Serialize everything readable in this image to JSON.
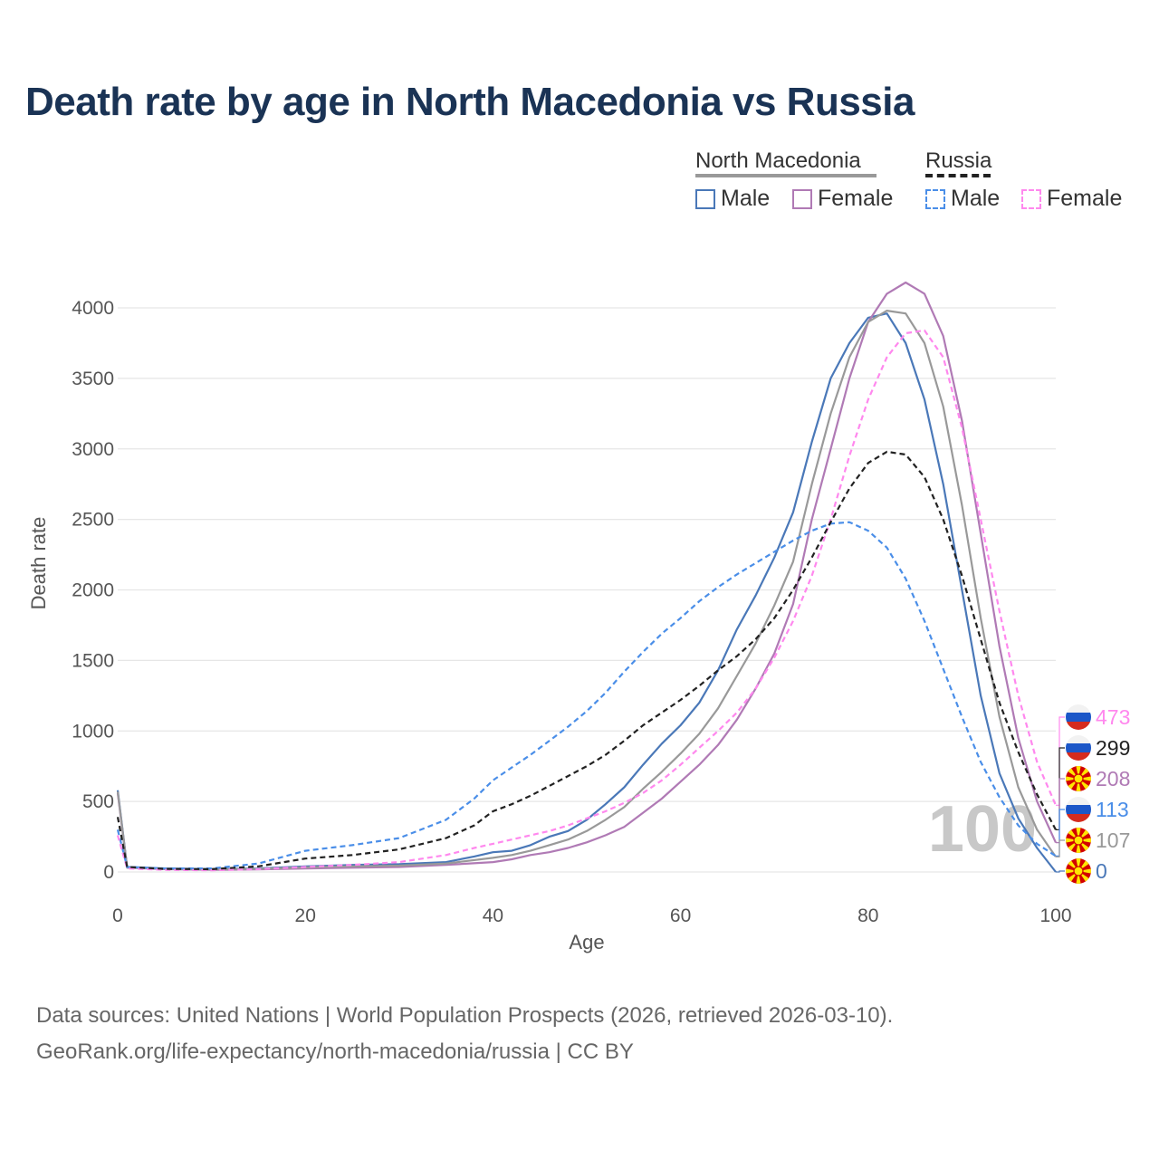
{
  "title": "Death rate by age in North Macedonia vs Russia",
  "legend": {
    "groups": [
      {
        "name": "North Macedonia",
        "underline_color": "#999999"
      },
      {
        "name": "Russia",
        "underline_color": "#222222"
      }
    ],
    "items": [
      {
        "label": "Male",
        "color": "#4a78b8",
        "style": "solid"
      },
      {
        "label": "Female",
        "color": "#b07ab5",
        "style": "solid"
      },
      {
        "label": "Male",
        "color": "#4a8ee8",
        "style": "dashed"
      },
      {
        "label": "Female",
        "color": "#ff88ee",
        "style": "dashed"
      }
    ]
  },
  "chart_data": {
    "type": "line",
    "xlabel": "Age",
    "ylabel": "Death rate",
    "xlim": [
      0,
      100
    ],
    "ylim": [
      0,
      4200
    ],
    "xticks": [
      0,
      20,
      40,
      60,
      80,
      100
    ],
    "yticks": [
      0,
      500,
      1000,
      1500,
      2000,
      2500,
      3000,
      3500,
      4000
    ],
    "watermark": "100",
    "series": [
      {
        "name": "North Macedonia Male",
        "color": "#4a78b8",
        "dashed": false,
        "points": [
          [
            0,
            580
          ],
          [
            1,
            35
          ],
          [
            5,
            25
          ],
          [
            10,
            20
          ],
          [
            15,
            25
          ],
          [
            20,
            40
          ],
          [
            25,
            50
          ],
          [
            30,
            55
          ],
          [
            35,
            70
          ],
          [
            38,
            110
          ],
          [
            40,
            140
          ],
          [
            42,
            150
          ],
          [
            44,
            190
          ],
          [
            46,
            250
          ],
          [
            48,
            290
          ],
          [
            50,
            370
          ],
          [
            52,
            480
          ],
          [
            54,
            600
          ],
          [
            56,
            760
          ],
          [
            58,
            910
          ],
          [
            60,
            1040
          ],
          [
            62,
            1200
          ],
          [
            64,
            1430
          ],
          [
            66,
            1720
          ],
          [
            68,
            1960
          ],
          [
            70,
            2230
          ],
          [
            72,
            2550
          ],
          [
            74,
            3050
          ],
          [
            76,
            3500
          ],
          [
            78,
            3750
          ],
          [
            80,
            3930
          ],
          [
            82,
            3960
          ],
          [
            84,
            3750
          ],
          [
            86,
            3350
          ],
          [
            88,
            2750
          ],
          [
            90,
            2000
          ],
          [
            92,
            1250
          ],
          [
            94,
            700
          ],
          [
            96,
            380
          ],
          [
            98,
            170
          ],
          [
            100,
            0
          ]
        ],
        "end_value": 0,
        "end_flag": "north-macedonia"
      },
      {
        "name": "North Macedonia Female",
        "color": "#b07ab5",
        "dashed": false,
        "points": [
          [
            0,
            560
          ],
          [
            1,
            30
          ],
          [
            5,
            20
          ],
          [
            10,
            15
          ],
          [
            15,
            18
          ],
          [
            20,
            25
          ],
          [
            25,
            30
          ],
          [
            30,
            35
          ],
          [
            35,
            50
          ],
          [
            40,
            70
          ],
          [
            42,
            90
          ],
          [
            44,
            120
          ],
          [
            46,
            140
          ],
          [
            48,
            170
          ],
          [
            50,
            210
          ],
          [
            52,
            260
          ],
          [
            54,
            320
          ],
          [
            56,
            420
          ],
          [
            58,
            520
          ],
          [
            60,
            640
          ],
          [
            62,
            760
          ],
          [
            64,
            900
          ],
          [
            66,
            1080
          ],
          [
            68,
            1300
          ],
          [
            70,
            1550
          ],
          [
            72,
            1900
          ],
          [
            74,
            2500
          ],
          [
            76,
            3000
          ],
          [
            78,
            3500
          ],
          [
            80,
            3900
          ],
          [
            82,
            4100
          ],
          [
            84,
            4180
          ],
          [
            86,
            4100
          ],
          [
            88,
            3800
          ],
          [
            90,
            3200
          ],
          [
            92,
            2400
          ],
          [
            94,
            1600
          ],
          [
            96,
            950
          ],
          [
            98,
            500
          ],
          [
            100,
            208
          ]
        ],
        "end_value": 208,
        "end_flag": "north-macedonia"
      },
      {
        "name": "North Macedonia Total",
        "color": "#999999",
        "dashed": false,
        "points": [
          [
            0,
            570
          ],
          [
            1,
            32
          ],
          [
            5,
            22
          ],
          [
            10,
            18
          ],
          [
            15,
            22
          ],
          [
            20,
            32
          ],
          [
            25,
            40
          ],
          [
            30,
            45
          ],
          [
            35,
            60
          ],
          [
            40,
            100
          ],
          [
            42,
            120
          ],
          [
            44,
            150
          ],
          [
            46,
            190
          ],
          [
            48,
            230
          ],
          [
            50,
            290
          ],
          [
            52,
            370
          ],
          [
            54,
            460
          ],
          [
            56,
            590
          ],
          [
            58,
            710
          ],
          [
            60,
            840
          ],
          [
            62,
            980
          ],
          [
            64,
            1160
          ],
          [
            66,
            1390
          ],
          [
            68,
            1620
          ],
          [
            70,
            1890
          ],
          [
            72,
            2200
          ],
          [
            74,
            2750
          ],
          [
            76,
            3250
          ],
          [
            78,
            3650
          ],
          [
            80,
            3900
          ],
          [
            82,
            3980
          ],
          [
            84,
            3960
          ],
          [
            86,
            3750
          ],
          [
            88,
            3300
          ],
          [
            90,
            2600
          ],
          [
            92,
            1800
          ],
          [
            94,
            1100
          ],
          [
            96,
            600
          ],
          [
            98,
            300
          ],
          [
            100,
            107
          ]
        ],
        "end_value": 107,
        "end_flag": "north-macedonia"
      },
      {
        "name": "Russia Male",
        "color": "#4a8ee8",
        "dashed": true,
        "points": [
          [
            0,
            300
          ],
          [
            1,
            35
          ],
          [
            5,
            25
          ],
          [
            10,
            25
          ],
          [
            15,
            60
          ],
          [
            20,
            150
          ],
          [
            25,
            190
          ],
          [
            30,
            240
          ],
          [
            35,
            370
          ],
          [
            38,
            520
          ],
          [
            40,
            650
          ],
          [
            42,
            740
          ],
          [
            44,
            830
          ],
          [
            46,
            930
          ],
          [
            48,
            1030
          ],
          [
            50,
            1140
          ],
          [
            52,
            1270
          ],
          [
            54,
            1420
          ],
          [
            56,
            1560
          ],
          [
            58,
            1690
          ],
          [
            60,
            1800
          ],
          [
            62,
            1920
          ],
          [
            64,
            2020
          ],
          [
            66,
            2110
          ],
          [
            68,
            2190
          ],
          [
            70,
            2270
          ],
          [
            72,
            2350
          ],
          [
            74,
            2420
          ],
          [
            76,
            2470
          ],
          [
            78,
            2480
          ],
          [
            80,
            2420
          ],
          [
            82,
            2300
          ],
          [
            84,
            2080
          ],
          [
            86,
            1780
          ],
          [
            88,
            1440
          ],
          [
            90,
            1100
          ],
          [
            92,
            780
          ],
          [
            94,
            530
          ],
          [
            96,
            330
          ],
          [
            98,
            200
          ],
          [
            100,
            113
          ]
        ],
        "end_value": 113,
        "end_flag": "russia"
      },
      {
        "name": "Russia Female",
        "color": "#ff88ee",
        "dashed": true,
        "points": [
          [
            0,
            260
          ],
          [
            1,
            25
          ],
          [
            5,
            15
          ],
          [
            10,
            12
          ],
          [
            15,
            20
          ],
          [
            20,
            35
          ],
          [
            25,
            50
          ],
          [
            30,
            70
          ],
          [
            35,
            120
          ],
          [
            38,
            170
          ],
          [
            40,
            200
          ],
          [
            42,
            230
          ],
          [
            44,
            260
          ],
          [
            46,
            290
          ],
          [
            48,
            330
          ],
          [
            50,
            380
          ],
          [
            52,
            430
          ],
          [
            54,
            490
          ],
          [
            56,
            560
          ],
          [
            58,
            650
          ],
          [
            60,
            760
          ],
          [
            62,
            880
          ],
          [
            64,
            1000
          ],
          [
            66,
            1130
          ],
          [
            68,
            1300
          ],
          [
            70,
            1520
          ],
          [
            72,
            1780
          ],
          [
            74,
            2100
          ],
          [
            76,
            2500
          ],
          [
            78,
            2950
          ],
          [
            80,
            3350
          ],
          [
            82,
            3650
          ],
          [
            84,
            3820
          ],
          [
            86,
            3840
          ],
          [
            88,
            3650
          ],
          [
            90,
            3150
          ],
          [
            92,
            2500
          ],
          [
            94,
            1850
          ],
          [
            96,
            1250
          ],
          [
            98,
            780
          ],
          [
            100,
            473
          ]
        ],
        "end_value": 473,
        "end_flag": "russia"
      },
      {
        "name": "Russia Total",
        "color": "#222222",
        "dashed": true,
        "points": [
          [
            0,
            390
          ],
          [
            1,
            35
          ],
          [
            5,
            22
          ],
          [
            10,
            20
          ],
          [
            15,
            40
          ],
          [
            20,
            95
          ],
          [
            25,
            120
          ],
          [
            30,
            160
          ],
          [
            35,
            240
          ],
          [
            38,
            330
          ],
          [
            40,
            430
          ],
          [
            42,
            480
          ],
          [
            44,
            540
          ],
          [
            46,
            610
          ],
          [
            48,
            680
          ],
          [
            50,
            750
          ],
          [
            52,
            830
          ],
          [
            54,
            930
          ],
          [
            56,
            1040
          ],
          [
            58,
            1130
          ],
          [
            60,
            1220
          ],
          [
            62,
            1320
          ],
          [
            64,
            1430
          ],
          [
            66,
            1530
          ],
          [
            68,
            1650
          ],
          [
            70,
            1800
          ],
          [
            72,
            2000
          ],
          [
            74,
            2230
          ],
          [
            76,
            2480
          ],
          [
            78,
            2720
          ],
          [
            80,
            2900
          ],
          [
            82,
            2980
          ],
          [
            84,
            2960
          ],
          [
            86,
            2800
          ],
          [
            88,
            2500
          ],
          [
            90,
            2100
          ],
          [
            92,
            1650
          ],
          [
            94,
            1200
          ],
          [
            96,
            850
          ],
          [
            98,
            550
          ],
          [
            100,
            299
          ]
        ],
        "end_value": 299,
        "end_flag": "russia"
      }
    ]
  },
  "footer": {
    "line1": "Data sources: United Nations | World Population Prospects (2026, retrieved 2026-03-10).",
    "line2": "GeoRank.org/life-expectancy/north-macedonia/russia | CC BY"
  }
}
